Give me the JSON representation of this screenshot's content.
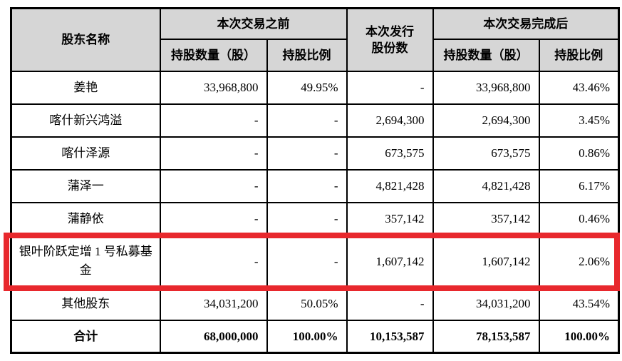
{
  "table": {
    "header": {
      "shareholder": "股东名称",
      "before_group": "本次交易之前",
      "issued_line1": "本次发行",
      "issued_line2": "股份数",
      "after_group": "本次交易完成后",
      "shares_label": "持股数量（股）",
      "ratio_label": "持股比例"
    },
    "rows": [
      {
        "name": "姜艳",
        "before_shares": "33,968,800",
        "before_ratio": "49.95%",
        "issued": "-",
        "after_shares": "33,968,800",
        "after_ratio": "43.46%",
        "highlighted": false,
        "total": false
      },
      {
        "name": "喀什新兴鸿溢",
        "before_shares": "-",
        "before_ratio": "-",
        "issued": "2,694,300",
        "after_shares": "2,694,300",
        "after_ratio": "3.45%",
        "highlighted": false,
        "total": false
      },
      {
        "name": "喀什泽源",
        "before_shares": "-",
        "before_ratio": "-",
        "issued": "673,575",
        "after_shares": "673,575",
        "after_ratio": "0.86%",
        "highlighted": false,
        "total": false
      },
      {
        "name": "蒲泽一",
        "before_shares": "-",
        "before_ratio": "-",
        "issued": "4,821,428",
        "after_shares": "4,821,428",
        "after_ratio": "6.17%",
        "highlighted": false,
        "total": false
      },
      {
        "name": "蒲静依",
        "before_shares": "-",
        "before_ratio": "-",
        "issued": "357,142",
        "after_shares": "357,142",
        "after_ratio": "0.46%",
        "highlighted": false,
        "total": false
      },
      {
        "name": "银叶阶跃定增 1 号私募基金",
        "before_shares": "-",
        "before_ratio": "-",
        "issued": "1,607,142",
        "after_shares": "1,607,142",
        "after_ratio": "2.06%",
        "highlighted": true,
        "total": false
      },
      {
        "name": "其他股东",
        "before_shares": "34,031,200",
        "before_ratio": "50.05%",
        "issued": "-",
        "after_shares": "34,031,200",
        "after_ratio": "43.54%",
        "highlighted": false,
        "total": false
      },
      {
        "name": "合计",
        "before_shares": "68,000,000",
        "before_ratio": "100.00%",
        "issued": "10,153,587",
        "after_shares": "78,153,587",
        "after_ratio": "100.00%",
        "highlighted": false,
        "total": true
      }
    ],
    "colors": {
      "highlight_border": "#e8282d",
      "header_background": "#d6d6d6",
      "grid_line": "#000000"
    }
  }
}
